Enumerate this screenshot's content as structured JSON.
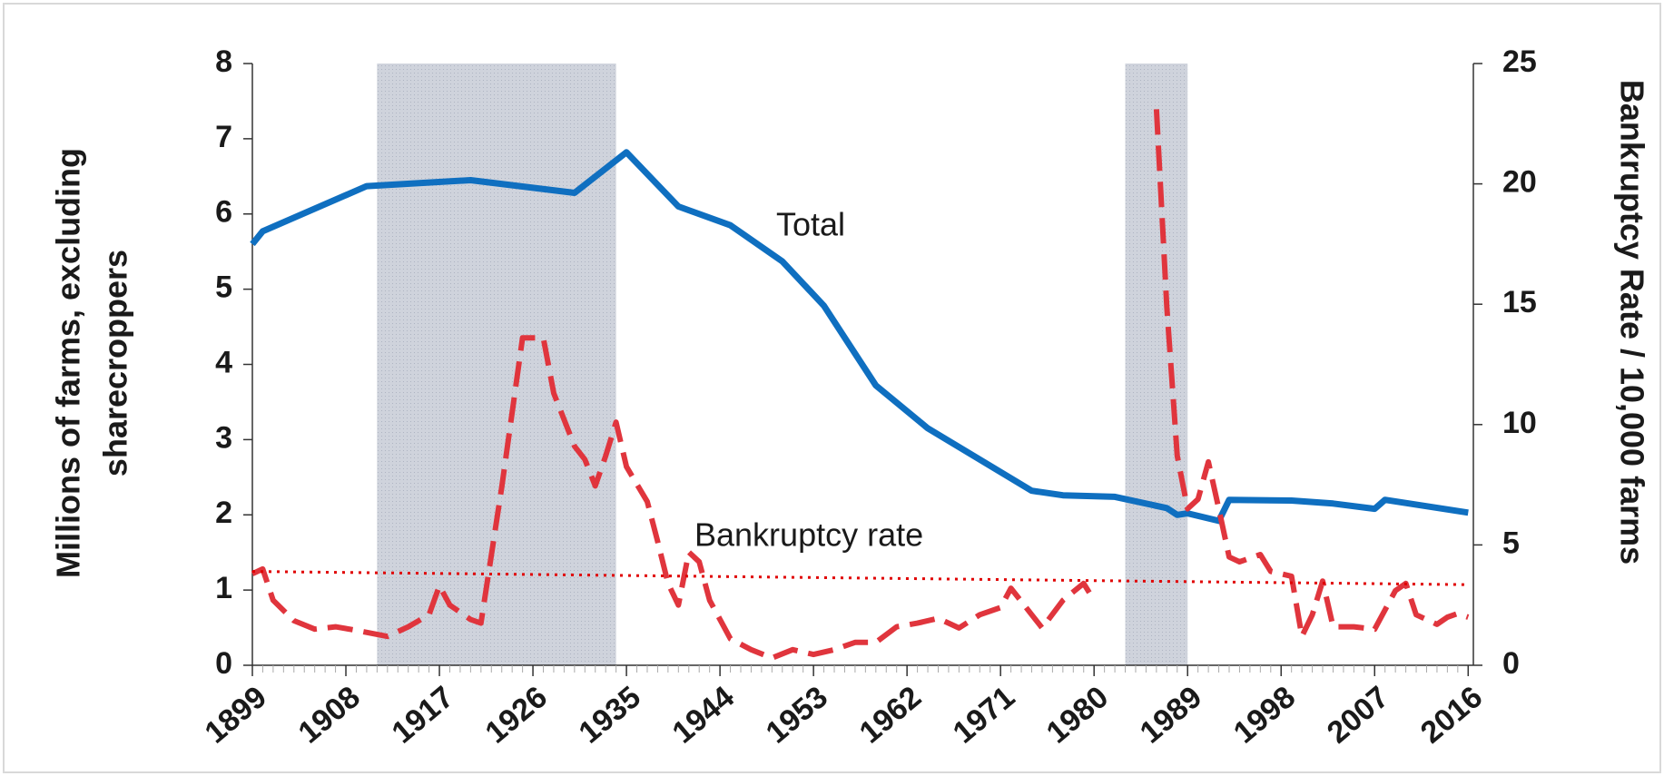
{
  "chart_data": {
    "type": "line",
    "ylabel": [
      "Millions of farms, excluding",
      "sharecroppers"
    ],
    "y2label": "Bankruptcy Rate / 10,000 farms",
    "xlim": [
      1899,
      2016.5
    ],
    "xticks": [
      1899,
      1908,
      1917,
      1926,
      1935,
      1944,
      1953,
      1962,
      1971,
      1980,
      1989,
      1998,
      2007,
      2016
    ],
    "ylim": [
      0,
      8
    ],
    "yticks": [
      0,
      1,
      2,
      3,
      4,
      5,
      6,
      7,
      8
    ],
    "y2lim": [
      0,
      25
    ],
    "y2ticks": [
      0,
      5,
      10,
      15,
      20,
      25
    ],
    "shaded_regions": [
      [
        1911,
        1934
      ],
      [
        1983,
        1989
      ]
    ],
    "series": [
      {
        "name": "Total",
        "color": "#0f6fc0",
        "style": "solid",
        "x": [
          1899,
          1900,
          1910,
          1920,
          1930,
          1935,
          1940,
          1945,
          1950,
          1954,
          1959,
          1964,
          1974,
          1977,
          1982,
          1987,
          1988,
          1989,
          1992,
          1993,
          1999,
          2003,
          2007,
          2008,
          2016
        ],
        "values": [
          5.6,
          5.77,
          6.37,
          6.45,
          6.28,
          6.82,
          6.1,
          5.85,
          5.37,
          4.78,
          3.72,
          3.15,
          2.32,
          2.26,
          2.24,
          2.09,
          2.0,
          2.02,
          1.92,
          2.2,
          2.19,
          2.15,
          2.08,
          2.2,
          2.03
        ]
      },
      {
        "name": "Bankruptcy rate",
        "color": "#e0353d",
        "style": "dashed",
        "axis": "y2",
        "x": [
          1899,
          1900,
          1901,
          1903,
          1905,
          1907,
          1909,
          1912,
          1914,
          1916,
          1917,
          1918,
          1920,
          1921,
          1923,
          1925,
          1927,
          1928,
          1930,
          1931,
          1932,
          1933,
          1934,
          1935,
          1937,
          1938,
          1939,
          1940,
          1941,
          1942,
          1943,
          1945,
          1947,
          1949,
          1951,
          1953,
          1955,
          1957,
          1959,
          1961,
          1963,
          1965,
          1967,
          1969,
          1971,
          1972,
          1974,
          1975,
          1977,
          1979,
          1980,
          1983,
          1986,
          1987,
          1988,
          1989,
          1990,
          1991,
          1992,
          1993,
          1994,
          1996,
          1997,
          1999,
          2000,
          2001,
          2002,
          2003,
          2005,
          2007,
          2009,
          2010,
          2011,
          2013,
          2014,
          2015,
          2016
        ],
        "values": [
          3.8,
          4.0,
          2.7,
          1.85,
          1.5,
          1.6,
          1.45,
          1.2,
          1.6,
          2.1,
          3.3,
          2.5,
          1.9,
          1.75,
          7.4,
          13.6,
          13.6,
          11.3,
          9.1,
          8.55,
          7.45,
          8.7,
          10.1,
          8.25,
          6.8,
          5.15,
          3.4,
          2.5,
          4.7,
          4.3,
          2.7,
          1.1,
          0.65,
          0.3,
          0.65,
          0.45,
          0.65,
          0.95,
          0.95,
          1.6,
          1.75,
          1.95,
          1.55,
          2.1,
          2.4,
          3.2,
          2.1,
          1.55,
          2.7,
          3.4,
          2.7,
          null,
          23.1,
          14.9,
          8.7,
          6.5,
          6.9,
          8.45,
          6.5,
          4.5,
          4.3,
          4.6,
          3.9,
          3.7,
          1.2,
          2.1,
          3.5,
          1.6,
          1.6,
          1.5,
          3.1,
          3.4,
          2.1,
          1.7,
          2.0,
          2.15,
          2.0
        ]
      },
      {
        "color": "#e00000",
        "style": "dotted",
        "axis": "y2",
        "x": [
          1899,
          2016
        ],
        "values": [
          3.9,
          3.35
        ]
      }
    ]
  }
}
